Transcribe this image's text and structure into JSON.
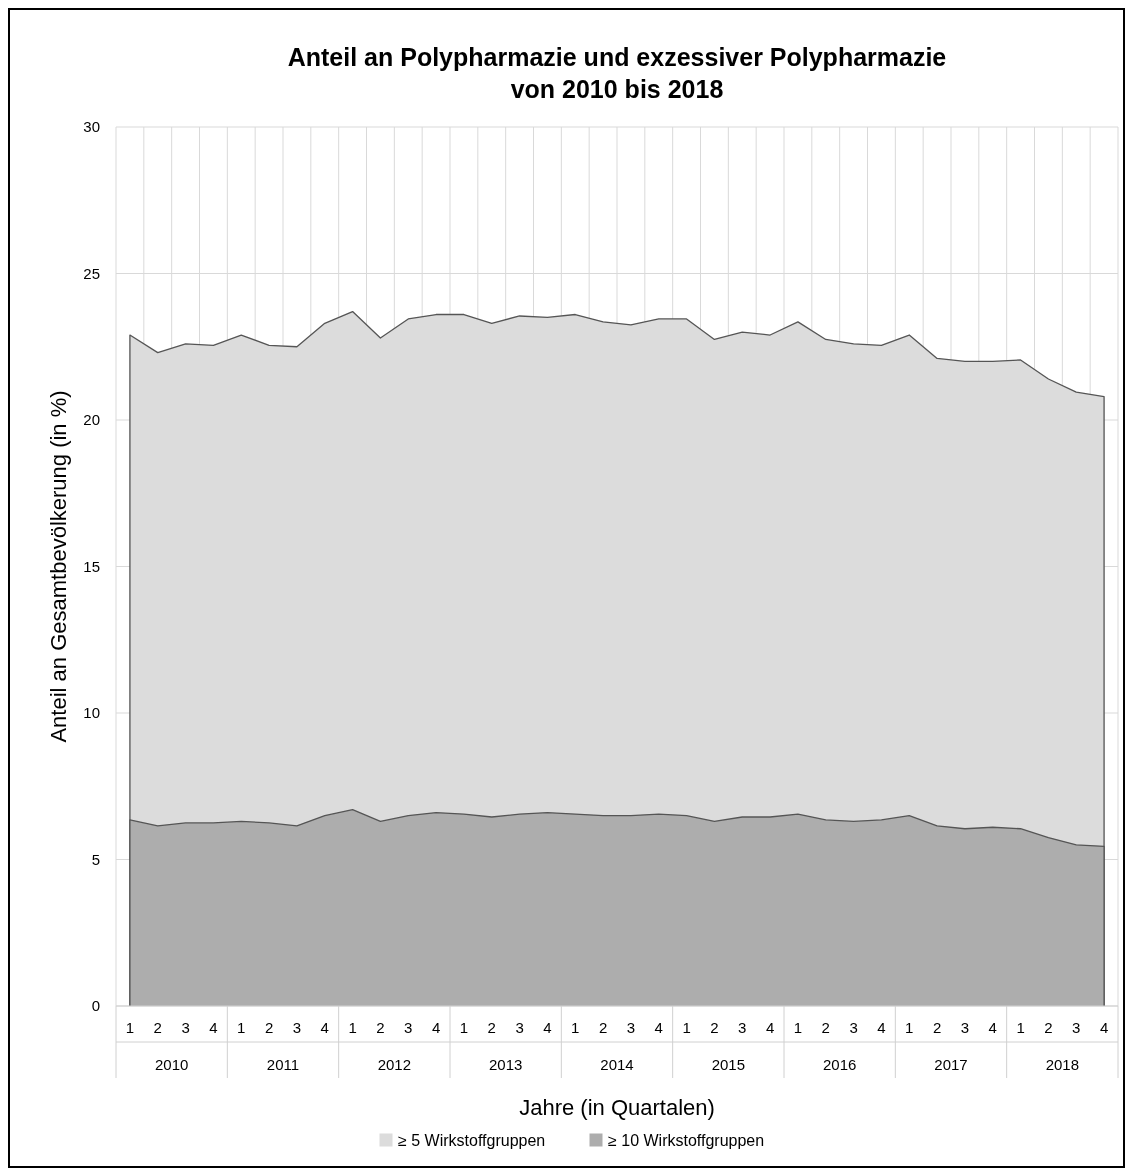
{
  "chart_data": {
    "type": "area",
    "title": "Anteil an Polypharmazie und exzessiver Polypharmazie\nvon 2010 bis 2018",
    "xlabel": "Jahre (in Quartalen)",
    "ylabel": "Anteil an Gesamtbevölkerung (in %)",
    "categories": [
      "1",
      "2",
      "3",
      "4",
      "1",
      "2",
      "3",
      "4",
      "1",
      "2",
      "3",
      "4",
      "1",
      "2",
      "3",
      "4",
      "1",
      "2",
      "3",
      "4",
      "1",
      "2",
      "3",
      "4",
      "1",
      "2",
      "3",
      "4",
      "1",
      "2",
      "3",
      "4",
      "1",
      "2",
      "3",
      "4"
    ],
    "annotations": [
      "2010",
      "2011",
      "2012",
      "2013",
      "2014",
      "2015",
      "2016",
      "2017",
      "2018"
    ],
    "series": [
      {
        "name": "≥ 5 Wirkstoffgruppen",
        "color": "#dcdcdc",
        "values": [
          22.9,
          22.3,
          22.6,
          22.55,
          22.9,
          22.55,
          22.5,
          23.3,
          23.7,
          22.8,
          23.45,
          23.6,
          23.6,
          23.3,
          23.55,
          23.5,
          23.6,
          23.35,
          23.25,
          23.45,
          23.45,
          22.75,
          23.0,
          22.9,
          23.35,
          22.75,
          22.6,
          22.55,
          22.9,
          22.1,
          22.0,
          22.0,
          22.05,
          21.4,
          20.95,
          20.8
        ]
      },
      {
        "name": "≥ 10 Wirkstoffgruppen",
        "color": "#adadad",
        "values": [
          6.35,
          6.15,
          6.25,
          6.25,
          6.3,
          6.25,
          6.15,
          6.5,
          6.7,
          6.3,
          6.5,
          6.6,
          6.55,
          6.45,
          6.55,
          6.6,
          6.55,
          6.5,
          6.5,
          6.55,
          6.5,
          6.3,
          6.45,
          6.45,
          6.55,
          6.35,
          6.3,
          6.35,
          6.5,
          6.15,
          6.05,
          6.1,
          6.05,
          5.75,
          5.5,
          5.45
        ]
      }
    ],
    "ylim": [
      0,
      30
    ],
    "yticks": [
      0,
      5,
      10,
      15,
      20,
      25,
      30
    ],
    "grid": true,
    "legend": "bottom"
  }
}
